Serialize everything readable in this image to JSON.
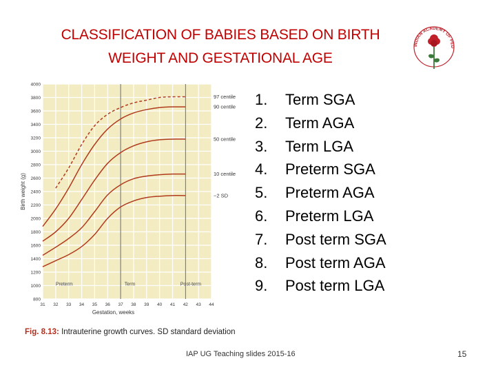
{
  "title": {
    "line1": "CLASSIFICATION OF BABIES BASED ON BIRTH",
    "line2": "WEIGHT AND GESTATIONAL AGE"
  },
  "logo": {
    "text": "INDIAN ACADEMY OF PEDIATRICS",
    "color": "#c0202a"
  },
  "list": [
    {
      "num": "1.",
      "label": "Term SGA"
    },
    {
      "num": "2.",
      "label": "Term AGA"
    },
    {
      "num": "3.",
      "label": "Term LGA"
    },
    {
      "num": "4.",
      "label": "Preterm SGA"
    },
    {
      "num": "5.",
      "label": "Preterm AGA"
    },
    {
      "num": "6.",
      "label": "Preterm LGA"
    },
    {
      "num": "7.",
      "label": "Post term SGA"
    },
    {
      "num": "8.",
      "label": "Post term AGA"
    },
    {
      "num": "9.",
      "label": "Post term LGA"
    }
  ],
  "caption": {
    "fig": "Fig. 8.13:",
    "text": "Intrauterine growth curves. SD standard deviation"
  },
  "footer": "IAP UG Teaching slides 2015-16",
  "page_number": "15",
  "chart_data": {
    "type": "line",
    "xlabel": "Gestation, weeks",
    "ylabel": "Birth weight (g)",
    "xlim": [
      31,
      44
    ],
    "ylim": [
      800,
      4000
    ],
    "x_ticks": [
      "31",
      "32",
      "33",
      "34",
      "35",
      "36",
      "37",
      "38",
      "39",
      "40",
      "41",
      "42",
      "43",
      "44"
    ],
    "y_ticks": [
      "4000",
      "3800",
      "3600",
      "3400",
      "3200",
      "3000",
      "2800",
      "2600",
      "2400",
      "2200",
      "2000",
      "1800",
      "1600",
      "1400",
      "1200",
      "1000",
      "800"
    ],
    "y_tick_values": [
      4000,
      3800,
      3600,
      3400,
      3200,
      3000,
      2800,
      2600,
      2400,
      2200,
      2000,
      1800,
      1600,
      1400,
      1200,
      1000,
      800
    ],
    "regions": [
      {
        "label": "Preterm",
        "x": 32
      },
      {
        "label": "Term",
        "x": 37.3
      },
      {
        "label": "Post-term",
        "x": 41.6
      }
    ],
    "region_boundaries": [
      37,
      42
    ],
    "line_color": "#b03a1c",
    "background": "#f3ecc2",
    "grid_color": "#ffffff",
    "series": [
      {
        "name": "97 centile",
        "style": "dashed",
        "x": [
          32,
          33,
          34,
          35,
          36,
          37,
          38,
          39,
          40,
          41,
          42
        ],
        "values": [
          2450,
          2750,
          3100,
          3380,
          3550,
          3650,
          3720,
          3760,
          3800,
          3810,
          3810
        ]
      },
      {
        "name": "90 centile",
        "style": "solid",
        "x": [
          31,
          32,
          33,
          34,
          35,
          36,
          37,
          38,
          39,
          40,
          41,
          42
        ],
        "values": [
          1880,
          2140,
          2450,
          2800,
          3100,
          3330,
          3480,
          3570,
          3620,
          3650,
          3660,
          3660
        ]
      },
      {
        "name": "50 centile",
        "style": "solid",
        "x": [
          31,
          32,
          33,
          34,
          35,
          36,
          37,
          38,
          39,
          40,
          41,
          42
        ],
        "values": [
          1660,
          1800,
          2000,
          2280,
          2570,
          2820,
          2980,
          3080,
          3140,
          3170,
          3180,
          3180
        ]
      },
      {
        "name": "10 centile",
        "style": "solid",
        "x": [
          31,
          32,
          33,
          34,
          35,
          36,
          37,
          38,
          39,
          40,
          41,
          42
        ],
        "values": [
          1450,
          1570,
          1700,
          1860,
          2100,
          2350,
          2500,
          2590,
          2630,
          2650,
          2660,
          2660
        ]
      },
      {
        "name": "−2 SD",
        "style": "solid",
        "x": [
          31,
          32,
          33,
          34,
          35,
          36,
          37,
          38,
          39,
          40,
          41,
          42
        ],
        "values": [
          1280,
          1370,
          1460,
          1580,
          1760,
          2000,
          2170,
          2260,
          2310,
          2330,
          2340,
          2340
        ]
      }
    ]
  }
}
